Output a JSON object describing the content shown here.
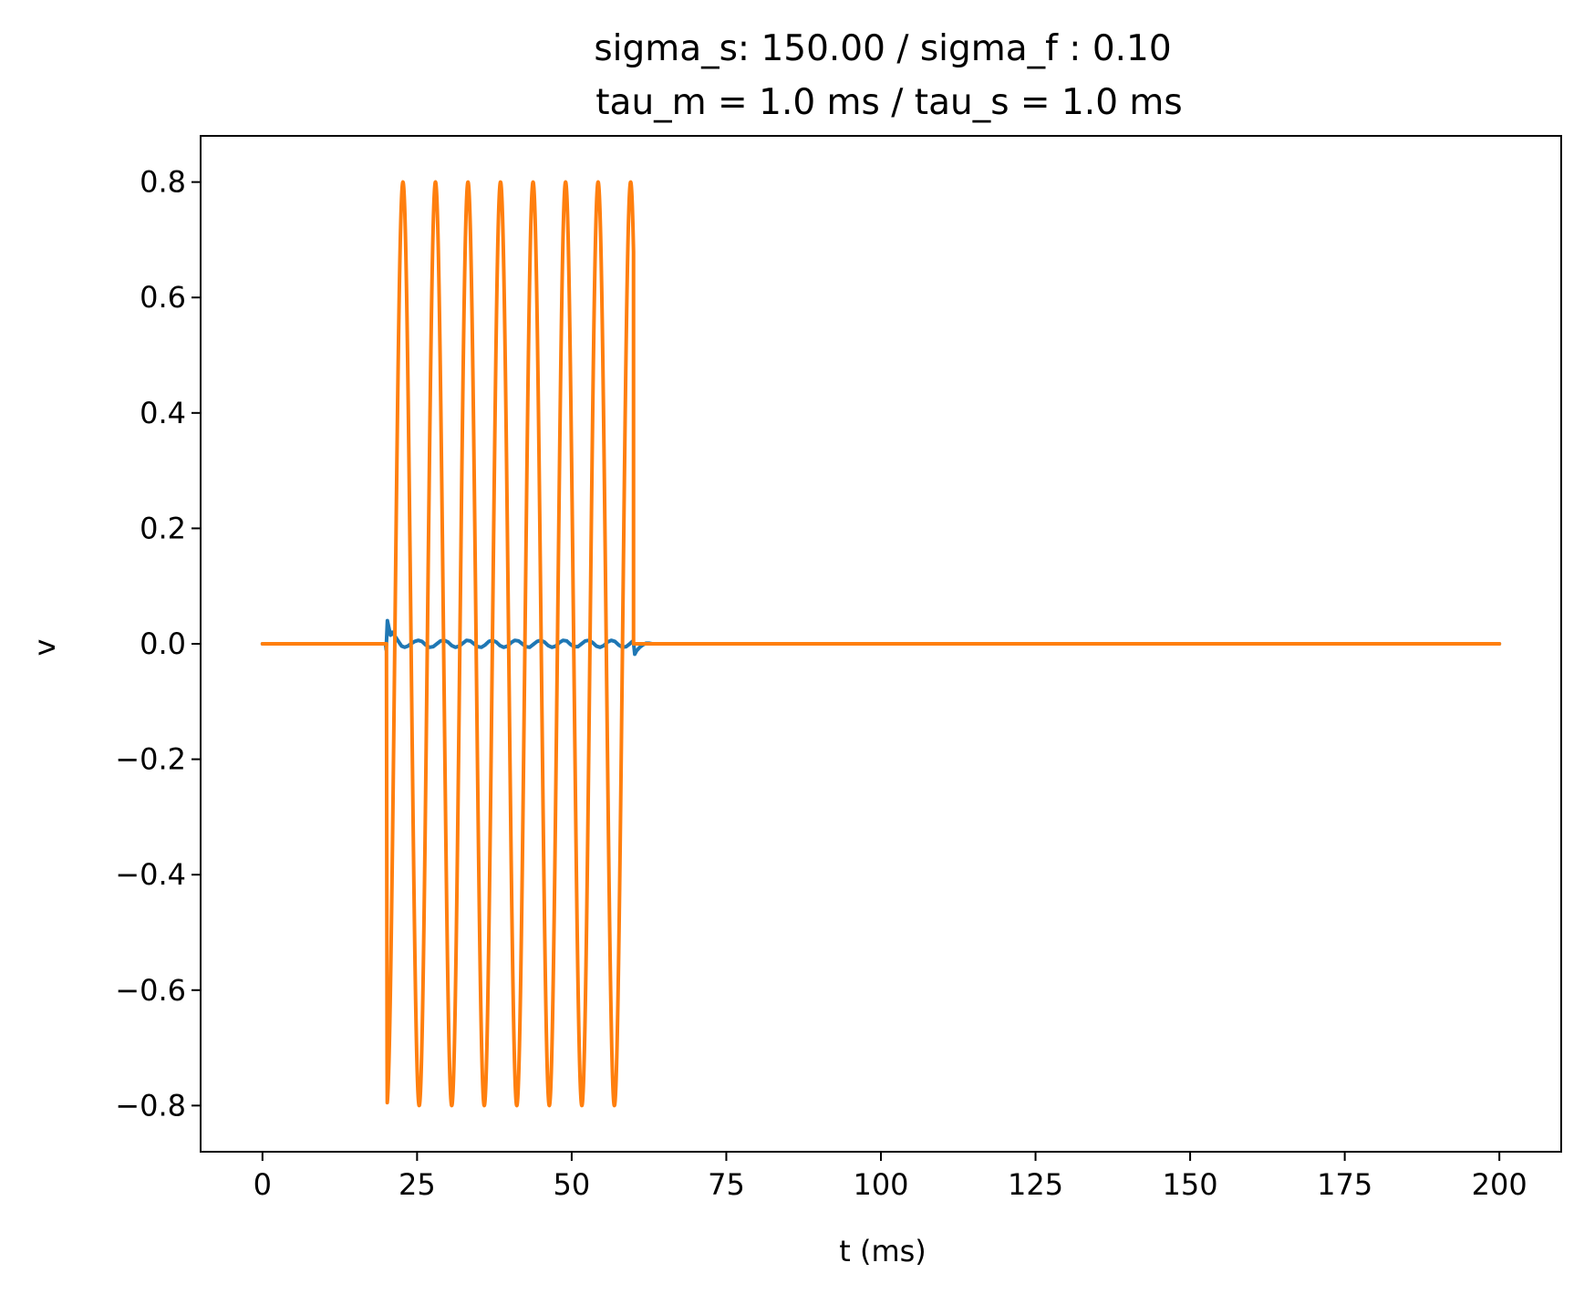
{
  "chart_data": {
    "type": "line",
    "title_lines": [
      "sigma_s: 150.00 / sigma_f : 0.10",
      "tau_m = 1.0 ms / tau_s = 1.0 ms"
    ],
    "xlabel": "t (ms)",
    "ylabel": "v",
    "xlim": [
      -10,
      210
    ],
    "ylim": [
      -0.88,
      0.88
    ],
    "x_ticks": [
      0,
      25,
      50,
      75,
      100,
      125,
      150,
      175,
      200
    ],
    "x_tick_labels": [
      "0",
      "25",
      "50",
      "75",
      "100",
      "125",
      "150",
      "175",
      "200"
    ],
    "y_ticks": [
      0.8,
      0.6,
      0.4,
      0.2,
      0.0,
      -0.2,
      -0.4,
      -0.6,
      -0.8
    ],
    "y_tick_labels": [
      "0.8",
      "0.6",
      "0.4",
      "0.2",
      "0.0",
      "−0.2",
      "−0.4",
      "−0.6",
      "−0.8"
    ],
    "grid": false,
    "series": [
      {
        "color": "#1f77b4",
        "x": [
          0,
          19.9,
          20.0,
          20.2,
          20.4,
          20.7,
          21.0,
          21.5,
          22.0,
          22.5,
          23.0,
          23.5,
          24.0,
          24.6,
          25.2,
          25.8,
          26.4,
          27.0,
          27.6,
          28.2,
          28.8,
          29.4,
          30.0,
          30.6,
          31.2,
          31.8,
          32.4,
          33.0,
          33.6,
          34.2,
          34.8,
          35.4,
          36.0,
          36.6,
          37.2,
          37.8,
          38.4,
          39.0,
          39.6,
          40.2,
          40.8,
          41.4,
          42.0,
          42.6,
          43.2,
          43.8,
          44.4,
          45.0,
          45.6,
          46.2,
          46.8,
          47.4,
          48.0,
          48.6,
          49.2,
          49.8,
          50.4,
          51.0,
          51.6,
          52.2,
          52.8,
          53.4,
          54.0,
          54.6,
          55.2,
          55.8,
          56.4,
          57.0,
          57.6,
          58.2,
          58.8,
          59.4,
          59.8,
          60.0,
          60.2,
          60.5,
          61.0,
          61.5,
          62.0,
          62.5,
          63.0,
          64.0,
          66.0,
          200
        ],
        "y": [
          0.0,
          0.0,
          -0.01,
          0.04,
          0.03,
          0.015,
          0.02,
          0.012,
          0.004,
          -0.004,
          -0.006,
          -0.004,
          0.0,
          0.004,
          0.006,
          0.004,
          -0.002,
          -0.006,
          -0.005,
          0.0,
          0.005,
          0.006,
          0.003,
          -0.003,
          -0.006,
          -0.004,
          0.001,
          0.006,
          0.005,
          0.0,
          -0.005,
          -0.006,
          -0.002,
          0.004,
          0.006,
          0.003,
          -0.003,
          -0.006,
          -0.004,
          0.002,
          0.006,
          0.005,
          0.0,
          -0.005,
          -0.006,
          -0.001,
          0.004,
          0.006,
          0.003,
          -0.003,
          -0.006,
          -0.004,
          0.002,
          0.006,
          0.005,
          -0.001,
          -0.005,
          -0.005,
          0.0,
          0.005,
          0.006,
          0.002,
          -0.004,
          -0.006,
          -0.003,
          0.003,
          0.006,
          0.004,
          -0.002,
          -0.006,
          -0.005,
          0.0,
          0.004,
          0.002,
          -0.018,
          -0.012,
          -0.006,
          -0.002,
          0.001,
          0.001,
          0.0,
          0.0,
          0.0,
          0.0
        ]
      },
      {
        "color": "#ff7f0e",
        "x": [
          0,
          19.9,
          20.05,
          20.15,
          25,
          60.0,
          60.8,
          62.0,
          64.0,
          200
        ],
        "y": [
          0.0,
          0.0,
          0.0,
          -0.72,
          0.0,
          0.0,
          0.0,
          0.0,
          0.0,
          0.0
        ],
        "sine_segment": {
          "x_start": 20.15,
          "x_end": 60.0,
          "period": 5.26,
          "amplitude": 0.8
        }
      }
    ]
  }
}
